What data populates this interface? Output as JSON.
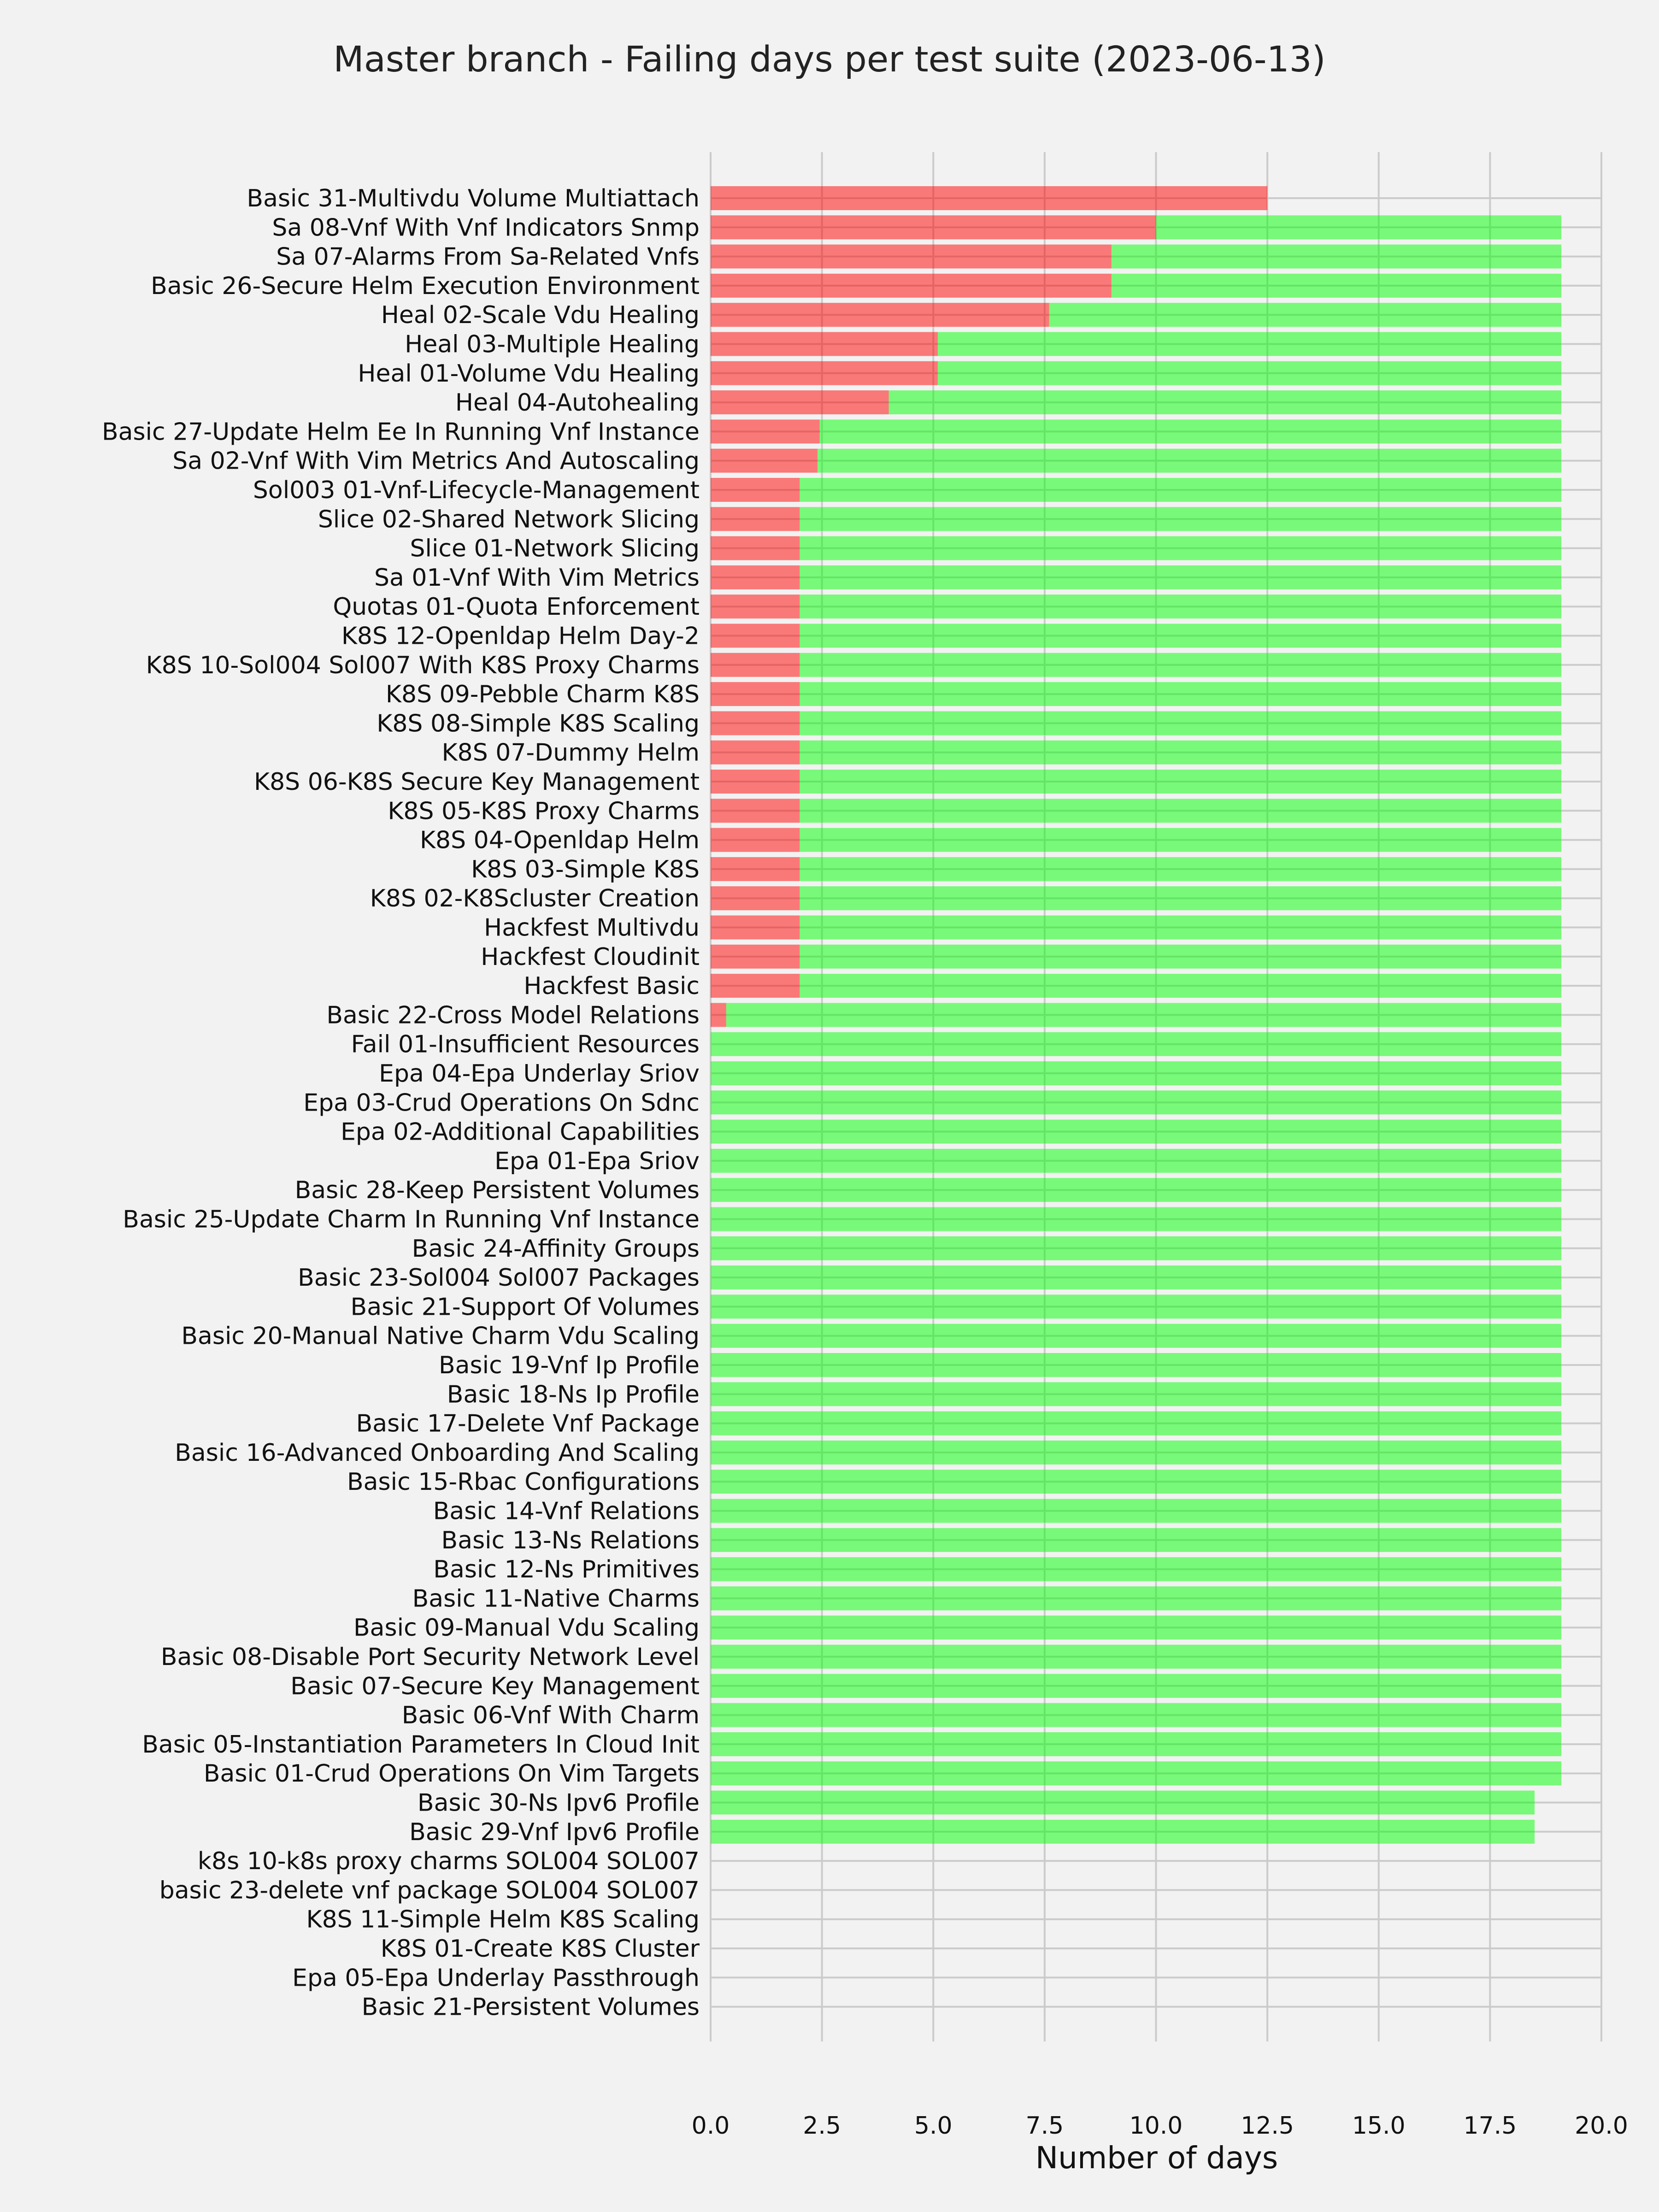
{
  "chart_data": {
    "type": "bar",
    "orientation": "horizontal",
    "stacked": true,
    "title": "Master branch - Failing days per test suite (2023-06-13)",
    "xlabel": "Number of days",
    "ylabel": "",
    "xlim": [
      0,
      20
    ],
    "xticks": [
      "0.0",
      "2.5",
      "5.0",
      "7.5",
      "10.0",
      "12.5",
      "15.0",
      "17.5",
      "20.0"
    ],
    "grid": true,
    "colors": {
      "failing": "#ff0000",
      "passing": "#00ff00"
    },
    "categories": [
      "Basic 31-Multivdu Volume Multiattach",
      "Sa 08-Vnf With Vnf Indicators Snmp",
      "Sa 07-Alarms From Sa-Related Vnfs",
      "Basic 26-Secure Helm Execution Environment",
      "Heal 02-Scale Vdu Healing",
      "Heal 03-Multiple Healing",
      "Heal 01-Volume Vdu Healing",
      "Heal 04-Autohealing",
      "Basic 27-Update Helm Ee In Running Vnf Instance",
      "Sa 02-Vnf With Vim Metrics And Autoscaling",
      "Sol003 01-Vnf-Lifecycle-Management",
      "Slice 02-Shared Network Slicing",
      "Slice 01-Network Slicing",
      "Sa 01-Vnf With Vim Metrics",
      "Quotas 01-Quota Enforcement",
      "K8S 12-Openldap Helm Day-2",
      "K8S 10-Sol004 Sol007 With K8S Proxy Charms",
      "K8S 09-Pebble Charm K8S",
      "K8S 08-Simple K8S Scaling",
      "K8S 07-Dummy Helm",
      "K8S 06-K8S Secure Key Management",
      "K8S 05-K8S Proxy Charms",
      "K8S 04-Openldap Helm",
      "K8S 03-Simple K8S",
      "K8S 02-K8Scluster Creation",
      "Hackfest Multivdu",
      "Hackfest Cloudinit",
      "Hackfest Basic",
      "Basic 22-Cross Model Relations",
      "Fail 01-Insufficient Resources",
      "Epa 04-Epa Underlay Sriov",
      "Epa 03-Crud Operations On Sdnc",
      "Epa 02-Additional Capabilities",
      "Epa 01-Epa Sriov",
      "Basic 28-Keep Persistent Volumes",
      "Basic 25-Update Charm In Running Vnf Instance",
      "Basic 24-Affinity Groups",
      "Basic 23-Sol004 Sol007 Packages",
      "Basic 21-Support Of Volumes",
      "Basic 20-Manual Native Charm Vdu Scaling",
      "Basic 19-Vnf Ip Profile",
      "Basic 18-Ns Ip Profile",
      "Basic 17-Delete Vnf Package",
      "Basic 16-Advanced Onboarding And Scaling",
      "Basic 15-Rbac Configurations",
      "Basic 14-Vnf Relations",
      "Basic 13-Ns Relations",
      "Basic 12-Ns Primitives",
      "Basic 11-Native Charms",
      "Basic 09-Manual Vdu Scaling",
      "Basic 08-Disable Port Security Network Level",
      "Basic 07-Secure Key Management",
      "Basic 06-Vnf With Charm",
      "Basic 05-Instantiation Parameters In Cloud Init",
      "Basic 01-Crud Operations On Vim Targets",
      "Basic 30-Ns Ipv6 Profile",
      "Basic 29-Vnf Ipv6 Profile",
      "k8s 10-k8s proxy charms SOL004 SOL007",
      "basic 23-delete vnf package SOL004 SOL007",
      "K8S 11-Simple Helm K8S Scaling",
      "K8S 01-Create K8S Cluster",
      "Epa 05-Epa Underlay Passthrough",
      "Basic 21-Persistent Volumes"
    ],
    "series": [
      {
        "role": "failing",
        "values": [
          12.5,
          10.0,
          9.0,
          9.0,
          7.6,
          5.1,
          5.1,
          4.0,
          2.45,
          2.4,
          2.0,
          2.0,
          2.0,
          2.0,
          2.0,
          2.0,
          2.0,
          2.0,
          2.0,
          2.0,
          2.0,
          2.0,
          2.0,
          2.0,
          2.0,
          2.0,
          2.0,
          2.0,
          0.35,
          0,
          0,
          0,
          0,
          0,
          0,
          0,
          0,
          0,
          0,
          0,
          0,
          0,
          0,
          0,
          0,
          0,
          0,
          0,
          0,
          0,
          0,
          0,
          0,
          0,
          0,
          0,
          0,
          0,
          0,
          0,
          0,
          0,
          0
        ]
      },
      {
        "role": "passing",
        "values": [
          0,
          9.1,
          10.1,
          10.1,
          11.5,
          14.0,
          14.0,
          15.1,
          16.65,
          16.7,
          17.1,
          17.1,
          17.1,
          17.1,
          17.1,
          17.1,
          17.1,
          17.1,
          17.1,
          17.1,
          17.1,
          17.1,
          17.1,
          17.1,
          17.1,
          17.1,
          17.1,
          17.1,
          18.75,
          19.1,
          19.1,
          19.1,
          19.1,
          19.1,
          19.1,
          19.1,
          19.1,
          19.1,
          19.1,
          19.1,
          19.1,
          19.1,
          19.1,
          19.1,
          19.1,
          19.1,
          19.1,
          19.1,
          19.1,
          19.1,
          19.1,
          19.1,
          19.1,
          19.1,
          19.1,
          18.5,
          18.5,
          0,
          0,
          0,
          0,
          0,
          0
        ]
      }
    ]
  }
}
